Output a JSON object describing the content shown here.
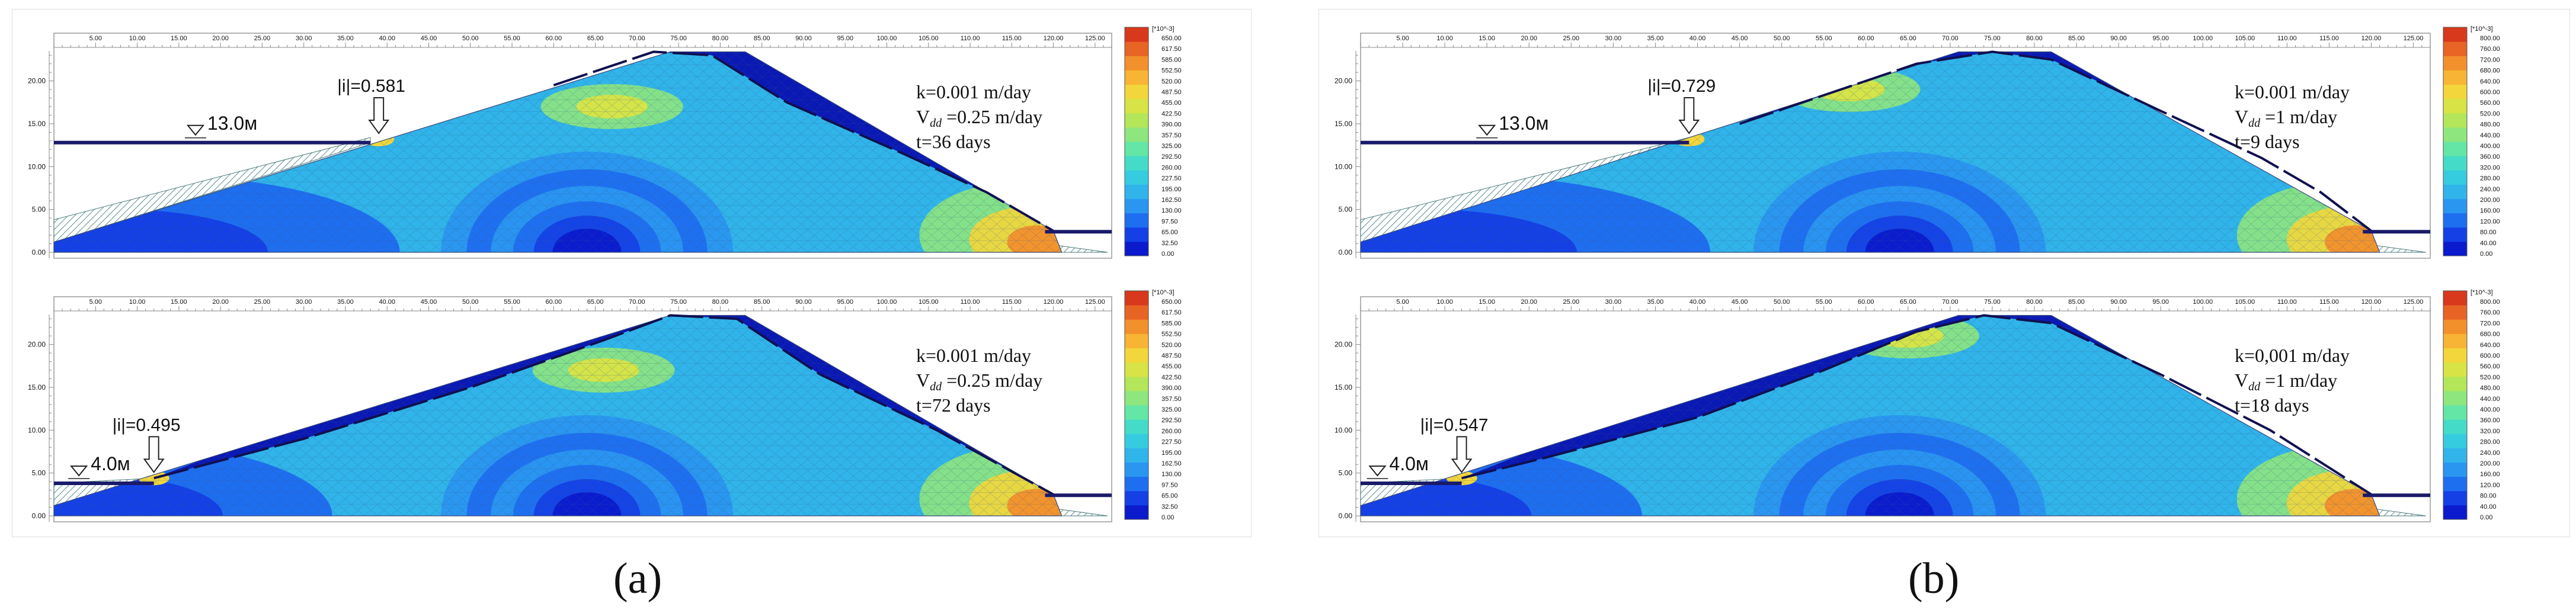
{
  "figure_labels": {
    "a": "(a)",
    "b": "(b)"
  },
  "panels": [
    {
      "id": "a",
      "colorbar": {
        "unit": "[*10^-3]",
        "ticks": [
          "650.00",
          "617.50",
          "585.00",
          "552.50",
          "520.00",
          "487.50",
          "455.00",
          "422.50",
          "390.00",
          "357.50",
          "325.00",
          "292.50",
          "260.00",
          "227.50",
          "195.00",
          "162.50",
          "130.00",
          "97.50",
          "65.00",
          "32.50",
          "0.00"
        ]
      },
      "x_ticks": [
        "5.00",
        "10.00",
        "15.00",
        "20.00",
        "25.00",
        "30.00",
        "35.00",
        "40.00",
        "45.00",
        "50.00",
        "55.00",
        "60.00",
        "65.00",
        "70.00",
        "75.00",
        "80.00",
        "85.00",
        "90.00",
        "95.00",
        "100.00",
        "105.00",
        "110.00",
        "115.00",
        "120.00",
        "125.00"
      ],
      "y_ticks": [
        "0.00",
        "5.00",
        "10.00",
        "15.00",
        "20.00"
      ],
      "plots": [
        {
          "level": "13.0м",
          "gradient": "|i|=0.581",
          "k": "k=0.001 m/day",
          "v": "V",
          "v_sub": "dd",
          "v_rest": " =0.25 m/day",
          "t": "t=36 days"
        },
        {
          "level": "4.0м",
          "gradient": "|i|=0.495",
          "k": "k=0.001 m/day",
          "v": "V",
          "v_sub": "dd",
          "v_rest": " =0.25 m/day",
          "t": "t=72 days"
        }
      ]
    },
    {
      "id": "b",
      "colorbar": {
        "unit": "[*10^-3]",
        "ticks": [
          "800.00",
          "760.00",
          "720.00",
          "680.00",
          "640.00",
          "600.00",
          "560.00",
          "520.00",
          "480.00",
          "440.00",
          "400.00",
          "360.00",
          "320.00",
          "280.00",
          "240.00",
          "200.00",
          "160.00",
          "120.00",
          "80.00",
          "40.00",
          "0.00"
        ]
      },
      "x_ticks": [
        "5.00",
        "10.00",
        "15.00",
        "20.00",
        "25.00",
        "30.00",
        "35.00",
        "40.00",
        "45.00",
        "50.00",
        "55.00",
        "60.00",
        "65.00",
        "70.00",
        "75.00",
        "80.00",
        "85.00",
        "90.00",
        "95.00",
        "100.00",
        "105.00",
        "110.00",
        "115.00",
        "120.00",
        "125.00"
      ],
      "y_ticks": [
        "0.00",
        "5.00",
        "10.00",
        "15.00",
        "20.00"
      ],
      "plots": [
        {
          "level": "13.0м",
          "gradient": "|i|=0.729",
          "k": "k=0.001 m/day",
          "v": "V",
          "v_sub": "dd",
          "v_rest": " =1 m/day",
          "t": "t=9 days"
        },
        {
          "level": "4.0м",
          "gradient": "|i|=0.547",
          "k": "k=0,001 m/day",
          "v": "V",
          "v_sub": "dd",
          "v_rest": " =1 m/day",
          "t": "t=18 days"
        }
      ]
    }
  ],
  "colors": {
    "ramp": [
      "#0a1acc",
      "#1440e6",
      "#1e6ef0",
      "#2a96f0",
      "#30b4ea",
      "#36cce0",
      "#44dcc8",
      "#64e6a6",
      "#8ee67e",
      "#b4e65a",
      "#d8e446",
      "#f2d63c",
      "#f8b434",
      "#f2902c",
      "#e86424",
      "#d8381c"
    ],
    "water_line": "#1a1a6a",
    "dark_top": "#0a18b4"
  }
}
